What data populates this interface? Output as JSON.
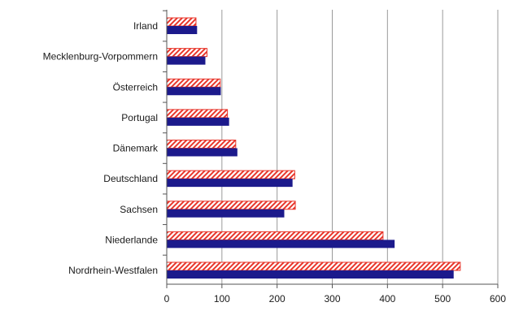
{
  "chart_data": {
    "type": "bar",
    "orientation": "horizontal",
    "title": "",
    "xlabel": "",
    "ylabel": "",
    "xlim": [
      0,
      600
    ],
    "x_ticks": [
      "0",
      "100",
      "200",
      "300",
      "400",
      "500",
      "600"
    ],
    "grid": "vertical",
    "legend": "none",
    "categories": [
      "Irland",
      "Mecklenburg-Vorpommern",
      "Österreich",
      "Portugal",
      "Dänemark",
      "Deutschland",
      "Sachsen",
      "Niederlande",
      "Nordrhein-Westfalen"
    ],
    "series": [
      {
        "pattern": "hatched",
        "color": "#e8352a",
        "values": [
          53,
          73,
          97,
          110,
          125,
          232,
          233,
          392,
          532
        ]
      },
      {
        "pattern": "solid",
        "color": "#1c1a8c",
        "values": [
          55,
          70,
          98,
          113,
          128,
          228,
          213,
          413,
          520
        ]
      }
    ]
  }
}
